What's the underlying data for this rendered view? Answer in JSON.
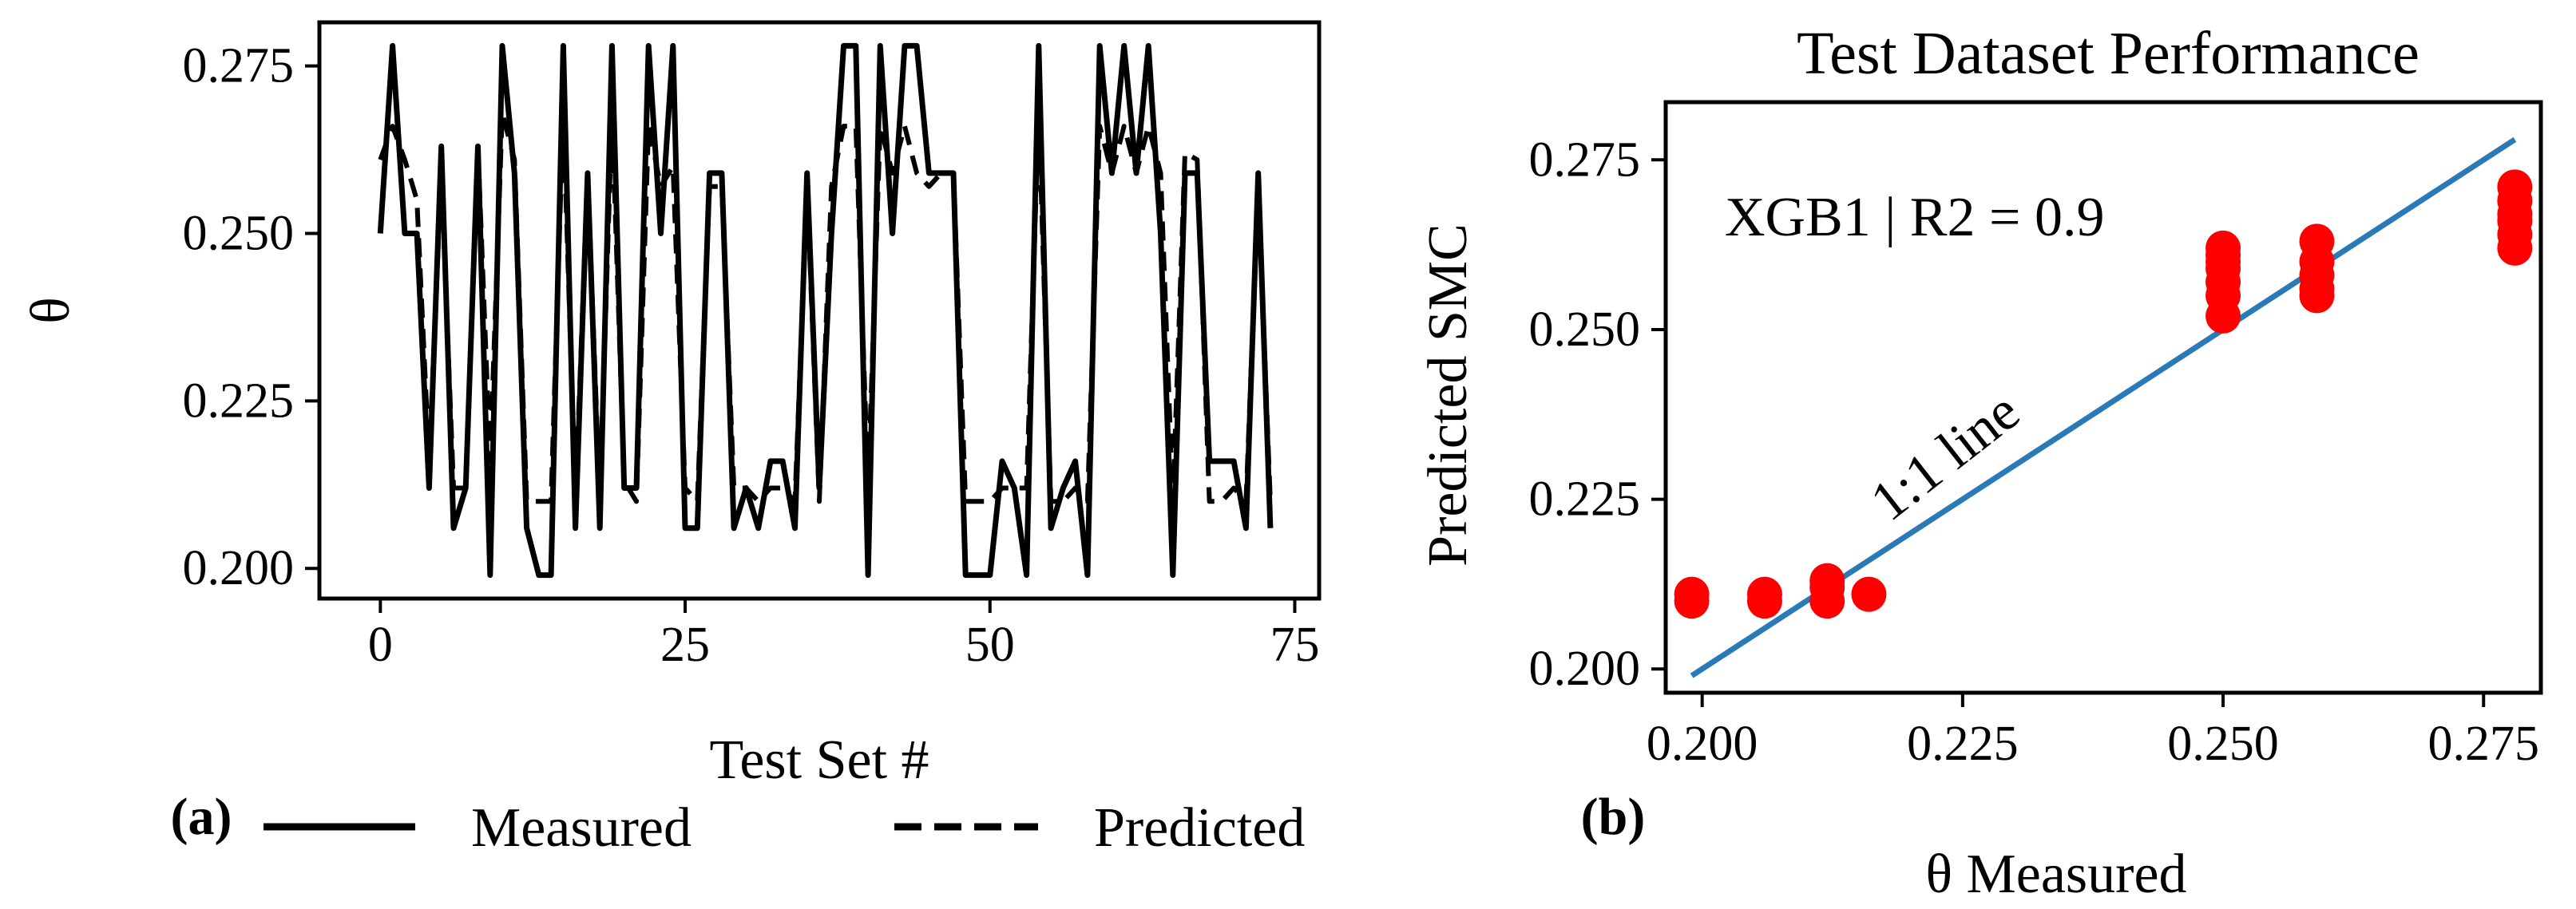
{
  "chart_data": [
    {
      "type": "line",
      "panel_label": "(a)",
      "title": "",
      "xlabel": "Test Set #",
      "ylabel": "θ",
      "xlim": [
        -5,
        77
      ],
      "ylim": [
        0.1955,
        0.2815
      ],
      "xticks": [
        0,
        25,
        50,
        75
      ],
      "xtick_labels": [
        "0",
        "25",
        "50",
        "75"
      ],
      "yticks": [
        0.2,
        0.225,
        0.25,
        0.275
      ],
      "ytick_labels": [
        "0.200",
        "0.225",
        "0.250",
        "0.275"
      ],
      "legend": {
        "placement": "below",
        "entries": [
          "Measured",
          "Predicted"
        ]
      },
      "x": [
        0,
        1,
        2,
        3,
        4,
        5,
        6,
        7,
        8,
        9,
        10,
        11,
        12,
        13,
        14,
        15,
        16,
        17,
        18,
        19,
        20,
        21,
        22,
        23,
        24,
        25,
        26,
        27,
        28,
        29,
        30,
        31,
        32,
        33,
        34,
        35,
        36,
        37,
        38,
        39,
        40,
        41,
        42,
        43,
        44,
        45,
        46,
        47,
        48,
        49,
        50,
        51,
        52,
        53,
        54,
        55,
        56,
        57,
        58,
        59,
        60,
        61,
        62,
        63,
        64,
        65,
        66,
        67,
        68,
        69,
        70,
        71,
        72,
        73
      ],
      "series": [
        {
          "name": "Measured",
          "style": "solid",
          "values": [
            0.25,
            0.278,
            0.25,
            0.25,
            0.212,
            0.263,
            0.206,
            0.212,
            0.263,
            0.199,
            0.278,
            0.259,
            0.206,
            0.199,
            0.199,
            0.278,
            0.206,
            0.259,
            0.206,
            0.278,
            0.212,
            0.212,
            0.278,
            0.25,
            0.278,
            0.206,
            0.206,
            0.259,
            0.259,
            0.206,
            0.212,
            0.206,
            0.216,
            0.216,
            0.206,
            0.259,
            0.212,
            0.25,
            0.278,
            0.278,
            0.199,
            0.278,
            0.25,
            0.278,
            0.278,
            0.259,
            0.259,
            0.259,
            0.199,
            0.199,
            0.199,
            0.216,
            0.212,
            0.199,
            0.278,
            0.206,
            0.212,
            0.216,
            0.199,
            0.278,
            0.259,
            0.278,
            0.259,
            0.278,
            0.25,
            0.199,
            0.259,
            0.259,
            0.216,
            0.216,
            0.216,
            0.206,
            0.259,
            0.206
          ]
        },
        {
          "name": "Predicted",
          "style": "dashed",
          "values": [
            0.261,
            0.266,
            0.261,
            0.255,
            0.216,
            0.259,
            0.212,
            0.212,
            0.263,
            0.216,
            0.268,
            0.261,
            0.21,
            0.21,
            0.21,
            0.268,
            0.21,
            0.259,
            0.21,
            0.268,
            0.213,
            0.21,
            0.266,
            0.257,
            0.26,
            0.212,
            0.21,
            0.257,
            0.257,
            0.212,
            0.212,
            0.21,
            0.212,
            0.212,
            0.21,
            0.257,
            0.21,
            0.257,
            0.266,
            0.266,
            0.212,
            0.266,
            0.259,
            0.266,
            0.259,
            0.257,
            0.259,
            0.259,
            0.21,
            0.21,
            0.21,
            0.212,
            0.212,
            0.212,
            0.268,
            0.21,
            0.21,
            0.212,
            0.21,
            0.266,
            0.259,
            0.266,
            0.259,
            0.266,
            0.259,
            0.21,
            0.262,
            0.261,
            0.21,
            0.21,
            0.212,
            0.21,
            0.257,
            0.21
          ]
        }
      ]
    },
    {
      "type": "scatter",
      "panel_label": "(b)",
      "title": "Test Dataset Performance",
      "xlabel": "θ Measured",
      "ylabel": "Predicted SMC",
      "xlim": [
        0.1965,
        0.2805
      ],
      "ylim": [
        0.1965,
        0.2835
      ],
      "xticks": [
        0.2,
        0.225,
        0.25,
        0.275
      ],
      "xtick_labels": [
        "0.200",
        "0.225",
        "0.250",
        "0.275"
      ],
      "yticks": [
        0.2,
        0.225,
        0.25,
        0.275
      ],
      "ytick_labels": [
        "0.200",
        "0.225",
        "0.250",
        "0.275"
      ],
      "annotation": "XGB1 | R2 = 0.9",
      "line_label": "1:1 line",
      "line_color": "#2a7ab8",
      "point_color": "#ff0000",
      "reference_line": {
        "x": [
          0.199,
          0.278
        ],
        "y": [
          0.199,
          0.278
        ]
      },
      "points": {
        "x": [
          0.199,
          0.199,
          0.206,
          0.206,
          0.212,
          0.212,
          0.212,
          0.216,
          0.25,
          0.25,
          0.25,
          0.25,
          0.25,
          0.25,
          0.25,
          0.259,
          0.259,
          0.259,
          0.259,
          0.259,
          0.278,
          0.278,
          0.278,
          0.278,
          0.278,
          0.278
        ],
        "y": [
          0.21,
          0.211,
          0.21,
          0.211,
          0.21,
          0.212,
          0.213,
          0.211,
          0.252,
          0.255,
          0.257,
          0.259,
          0.26,
          0.261,
          0.262,
          0.255,
          0.256,
          0.258,
          0.26,
          0.263,
          0.262,
          0.264,
          0.266,
          0.267,
          0.269,
          0.271
        ]
      }
    }
  ]
}
